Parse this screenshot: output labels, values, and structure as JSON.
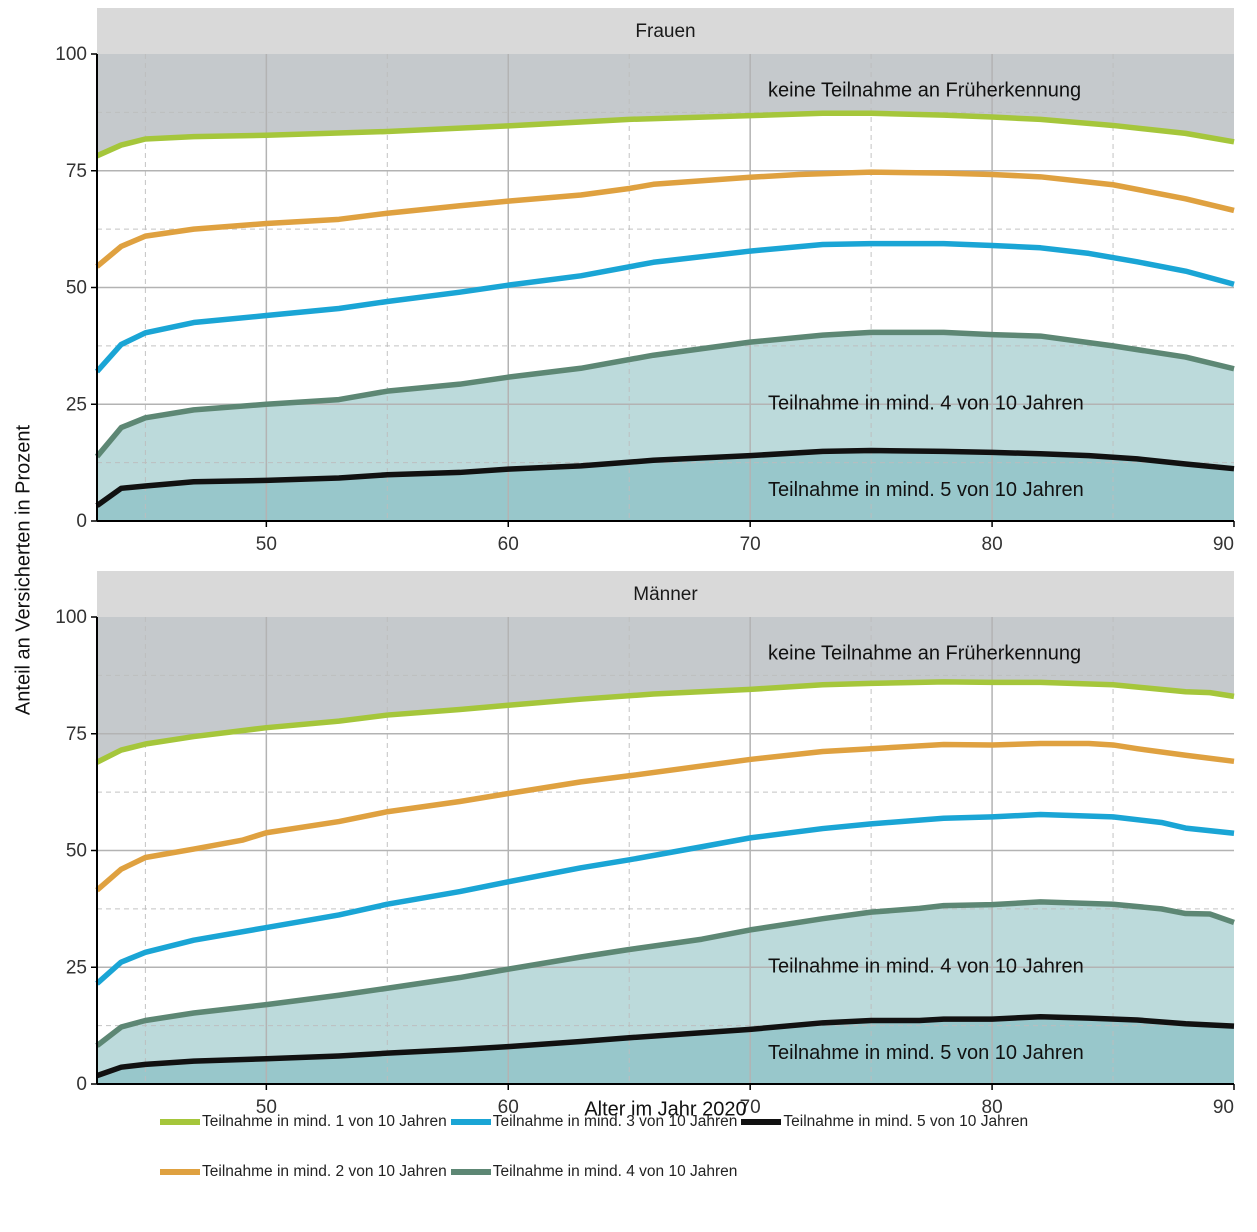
{
  "chart_data": {
    "type": "line",
    "x_label": "Alter im Jahr 2020",
    "y_label": "Anteil an Versicherten in Prozent",
    "xlim": [
      43,
      90
    ],
    "ylim": [
      0,
      100
    ],
    "x_ticks": [
      "50",
      "60",
      "70",
      "80",
      "90"
    ],
    "y_ticks": [
      "0",
      "25",
      "50",
      "75",
      "100"
    ],
    "grid": true,
    "legend_position": "bottom",
    "colors": {
      "keine": "#c5c9cc",
      "fill4": "#bcdadb",
      "fill5": "#98c7cb",
      "s1": "#a5c63b",
      "s2": "#dfa140",
      "s3": "#1aa5d5",
      "s4": "#5d8774",
      "s5": "#111111"
    },
    "legend": [
      [
        "Teilnahme in mind. 1 von 10 Jahren",
        "Teilnahme in mind. 3 von 10 Jahren",
        "Teilnahme in mind. 5 von 10 Jahren"
      ],
      [
        "Teilnahme in mind. 2 von 10 Jahren",
        "Teilnahme in mind. 4 von 10 Jahren"
      ]
    ],
    "panels": [
      {
        "title": "Frauen",
        "area_labels": {
          "keine": "keine Teilnahme an Früherkennung",
          "mind4": "Teilnahme in mind. 4 von 10 Jahren",
          "mind5": "Teilnahme in mind. 5 von 10 Jahren"
        },
        "series": [
          {
            "name": "Teilnahme in mind. 1 von 10 Jahren",
            "key": "s1",
            "points": [
              [
                43,
                78.2
              ],
              [
                44,
                80.5
              ],
              [
                45,
                81.8
              ],
              [
                47,
                82.3
              ],
              [
                50,
                82.6
              ],
              [
                55,
                83.4
              ],
              [
                60,
                84.6
              ],
              [
                65,
                86.0
              ],
              [
                70,
                86.8
              ],
              [
                73,
                87.3
              ],
              [
                75,
                87.3
              ],
              [
                78,
                86.9
              ],
              [
                80,
                86.5
              ],
              [
                82,
                86.0
              ],
              [
                85,
                84.7
              ],
              [
                88,
                83.0
              ],
              [
                90,
                81.2
              ]
            ]
          },
          {
            "name": "Teilnahme in mind. 2 von 10 Jahren",
            "key": "s2",
            "points": [
              [
                43,
                54.5
              ],
              [
                44,
                58.8
              ],
              [
                45,
                61.0
              ],
              [
                47,
                62.5
              ],
              [
                50,
                63.7
              ],
              [
                53,
                64.6
              ],
              [
                55,
                65.9
              ],
              [
                58,
                67.5
              ],
              [
                60,
                68.5
              ],
              [
                63,
                69.8
              ],
              [
                65,
                71.2
              ],
              [
                66,
                72.1
              ],
              [
                70,
                73.6
              ],
              [
                72,
                74.2
              ],
              [
                75,
                74.7
              ],
              [
                78,
                74.5
              ],
              [
                80,
                74.2
              ],
              [
                82,
                73.7
              ],
              [
                85,
                72.0
              ],
              [
                88,
                69.0
              ],
              [
                90,
                66.5
              ]
            ]
          },
          {
            "name": "Teilnahme in mind. 3 von 10 Jahren",
            "key": "s3",
            "points": [
              [
                43,
                32.0
              ],
              [
                44,
                37.8
              ],
              [
                45,
                40.3
              ],
              [
                47,
                42.5
              ],
              [
                50,
                44.0
              ],
              [
                53,
                45.5
              ],
              [
                55,
                47.0
              ],
              [
                58,
                49.0
              ],
              [
                60,
                50.5
              ],
              [
                63,
                52.5
              ],
              [
                66,
                55.4
              ],
              [
                70,
                57.8
              ],
              [
                73,
                59.2
              ],
              [
                75,
                59.4
              ],
              [
                78,
                59.4
              ],
              [
                80,
                59.0
              ],
              [
                82,
                58.5
              ],
              [
                84,
                57.3
              ],
              [
                86,
                55.5
              ],
              [
                88,
                53.5
              ],
              [
                90,
                50.7
              ]
            ]
          },
          {
            "name": "Teilnahme in mind. 4 von 10 Jahren",
            "key": "s4",
            "points": [
              [
                43,
                13.8
              ],
              [
                44,
                20.0
              ],
              [
                45,
                22.1
              ],
              [
                47,
                23.8
              ],
              [
                50,
                25.0
              ],
              [
                53,
                26.0
              ],
              [
                55,
                27.8
              ],
              [
                58,
                29.3
              ],
              [
                60,
                30.8
              ],
              [
                63,
                32.7
              ],
              [
                66,
                35.5
              ],
              [
                70,
                38.3
              ],
              [
                73,
                39.8
              ],
              [
                75,
                40.4
              ],
              [
                78,
                40.4
              ],
              [
                80,
                39.9
              ],
              [
                82,
                39.6
              ],
              [
                85,
                37.5
              ],
              [
                88,
                35.1
              ],
              [
                90,
                32.6
              ]
            ]
          },
          {
            "name": "Teilnahme in mind. 5 von 10 Jahren",
            "key": "s5",
            "points": [
              [
                43,
                3.3
              ],
              [
                44,
                7.0
              ],
              [
                45,
                7.5
              ],
              [
                47,
                8.4
              ],
              [
                50,
                8.7
              ],
              [
                53,
                9.2
              ],
              [
                55,
                9.9
              ],
              [
                58,
                10.4
              ],
              [
                60,
                11.1
              ],
              [
                63,
                11.8
              ],
              [
                66,
                13.0
              ],
              [
                70,
                14.0
              ],
              [
                73,
                14.9
              ],
              [
                75,
                15.1
              ],
              [
                78,
                14.9
              ],
              [
                80,
                14.7
              ],
              [
                82,
                14.4
              ],
              [
                84,
                14.0
              ],
              [
                86,
                13.3
              ],
              [
                88,
                12.2
              ],
              [
                90,
                11.2
              ]
            ]
          }
        ]
      },
      {
        "title": "Männer",
        "area_labels": {
          "keine": "keine Teilnahme an Früherkennung",
          "mind4": "Teilnahme in mind. 4 von 10 Jahren",
          "mind5": "Teilnahme in mind. 5 von 10 Jahren"
        },
        "series": [
          {
            "name": "Teilnahme in mind. 1 von 10 Jahren",
            "key": "s1",
            "points": [
              [
                43,
                68.9
              ],
              [
                44,
                71.5
              ],
              [
                45,
                72.8
              ],
              [
                47,
                74.4
              ],
              [
                50,
                76.3
              ],
              [
                53,
                77.7
              ],
              [
                55,
                79.0
              ],
              [
                58,
                80.2
              ],
              [
                60,
                81.1
              ],
              [
                63,
                82.4
              ],
              [
                66,
                83.5
              ],
              [
                70,
                84.5
              ],
              [
                73,
                85.5
              ],
              [
                75,
                85.8
              ],
              [
                78,
                86.1
              ],
              [
                80,
                86.0
              ],
              [
                82,
                86.0
              ],
              [
                85,
                85.5
              ],
              [
                88,
                84.0
              ],
              [
                89,
                83.8
              ],
              [
                90,
                83.0
              ]
            ]
          },
          {
            "name": "Teilnahme in mind. 2 von 10 Jahren",
            "key": "s2",
            "points": [
              [
                43,
                41.5
              ],
              [
                44,
                46.0
              ],
              [
                45,
                48.5
              ],
              [
                47,
                50.3
              ],
              [
                49,
                52.2
              ],
              [
                50,
                53.8
              ],
              [
                53,
                56.2
              ],
              [
                55,
                58.3
              ],
              [
                58,
                60.5
              ],
              [
                60,
                62.2
              ],
              [
                63,
                64.7
              ],
              [
                65,
                66.0
              ],
              [
                70,
                69.5
              ],
              [
                73,
                71.2
              ],
              [
                75,
                71.8
              ],
              [
                78,
                72.7
              ],
              [
                80,
                72.6
              ],
              [
                82,
                72.9
              ],
              [
                84,
                72.9
              ],
              [
                85,
                72.6
              ],
              [
                86,
                71.8
              ],
              [
                88,
                70.4
              ],
              [
                90,
                69.1
              ]
            ]
          },
          {
            "name": "Teilnahme in mind. 3 von 10 Jahren",
            "key": "s3",
            "points": [
              [
                43,
                21.5
              ],
              [
                44,
                26.1
              ],
              [
                45,
                28.2
              ],
              [
                47,
                30.8
              ],
              [
                50,
                33.5
              ],
              [
                53,
                36.2
              ],
              [
                55,
                38.5
              ],
              [
                58,
                41.2
              ],
              [
                60,
                43.3
              ],
              [
                63,
                46.3
              ],
              [
                65,
                48.0
              ],
              [
                68,
                50.8
              ],
              [
                70,
                52.7
              ],
              [
                73,
                54.7
              ],
              [
                75,
                55.7
              ],
              [
                78,
                56.9
              ],
              [
                80,
                57.2
              ],
              [
                82,
                57.7
              ],
              [
                85,
                57.2
              ],
              [
                87,
                56.0
              ],
              [
                88,
                54.8
              ],
              [
                90,
                53.7
              ]
            ]
          },
          {
            "name": "Teilnahme in mind. 4 von 10 Jahren",
            "key": "s4",
            "points": [
              [
                43,
                8.2
              ],
              [
                44,
                12.2
              ],
              [
                45,
                13.6
              ],
              [
                47,
                15.2
              ],
              [
                50,
                17.0
              ],
              [
                53,
                19.0
              ],
              [
                55,
                20.5
              ],
              [
                58,
                22.8
              ],
              [
                60,
                24.6
              ],
              [
                63,
                27.2
              ],
              [
                65,
                28.8
              ],
              [
                68,
                31.0
              ],
              [
                70,
                33.0
              ],
              [
                73,
                35.4
              ],
              [
                75,
                36.8
              ],
              [
                77,
                37.6
              ],
              [
                78,
                38.2
              ],
              [
                80,
                38.4
              ],
              [
                82,
                39.0
              ],
              [
                85,
                38.5
              ],
              [
                87,
                37.5
              ],
              [
                88,
                36.5
              ],
              [
                89,
                36.4
              ],
              [
                90,
                34.6
              ]
            ]
          },
          {
            "name": "Teilnahme in mind. 5 von 10 Jahren",
            "key": "s5",
            "points": [
              [
                43,
                1.8
              ],
              [
                44,
                3.6
              ],
              [
                45,
                4.2
              ],
              [
                47,
                4.9
              ],
              [
                50,
                5.4
              ],
              [
                53,
                6.0
              ],
              [
                55,
                6.6
              ],
              [
                58,
                7.4
              ],
              [
                60,
                8.0
              ],
              [
                63,
                9.1
              ],
              [
                65,
                9.9
              ],
              [
                70,
                11.7
              ],
              [
                73,
                13.1
              ],
              [
                75,
                13.6
              ],
              [
                77,
                13.6
              ],
              [
                78,
                13.9
              ],
              [
                80,
                13.9
              ],
              [
                82,
                14.4
              ],
              [
                84,
                14.1
              ],
              [
                86,
                13.7
              ],
              [
                88,
                12.9
              ],
              [
                90,
                12.4
              ]
            ]
          }
        ]
      }
    ]
  }
}
